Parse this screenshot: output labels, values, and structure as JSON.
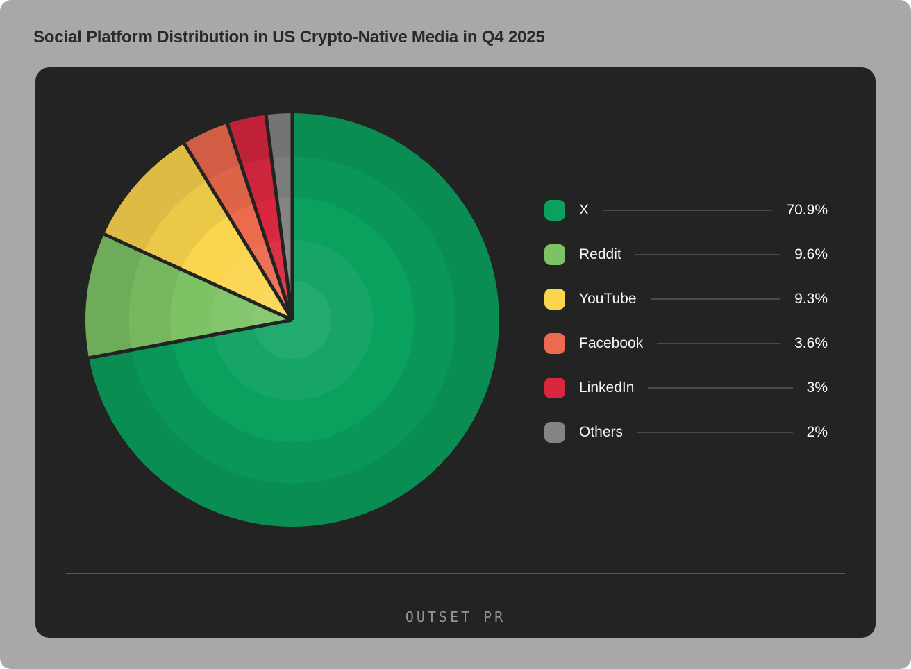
{
  "page_title": "Social Platform Distribution in US Crypto-Native Media in Q4 2025",
  "brand": "OUTSET PR",
  "chart_data": {
    "type": "pie",
    "title": "Social Platform Distribution in US Crypto-Native Media in Q4 2025",
    "labels": [
      "X",
      "Reddit",
      "YouTube",
      "Facebook",
      "LinkedIn",
      "Others"
    ],
    "values": [
      70.9,
      9.6,
      9.3,
      3.6,
      3,
      2
    ],
    "value_labels": [
      "70.9%",
      "9.6%",
      "9.3%",
      "3.6%",
      "3%",
      "2%"
    ],
    "colors": [
      "#0aa05e",
      "#7dc365",
      "#fbd54e",
      "#ec6a4d",
      "#d92740",
      "#848484"
    ],
    "start_angle_deg": 0,
    "direction": "clockwise",
    "legend_position": "right",
    "slice_border_color": "#232323",
    "ring_bands": 5
  },
  "theme": {
    "page_bg": "#a8a8a8",
    "card_bg": "#232323",
    "title_color": "#292929",
    "legend_text_color": "#f5f5f5",
    "value_text_color": "#ffffff",
    "leader_line_color": "#4a4a4a",
    "divider_color": "#575757",
    "logo_color": "#939393"
  }
}
